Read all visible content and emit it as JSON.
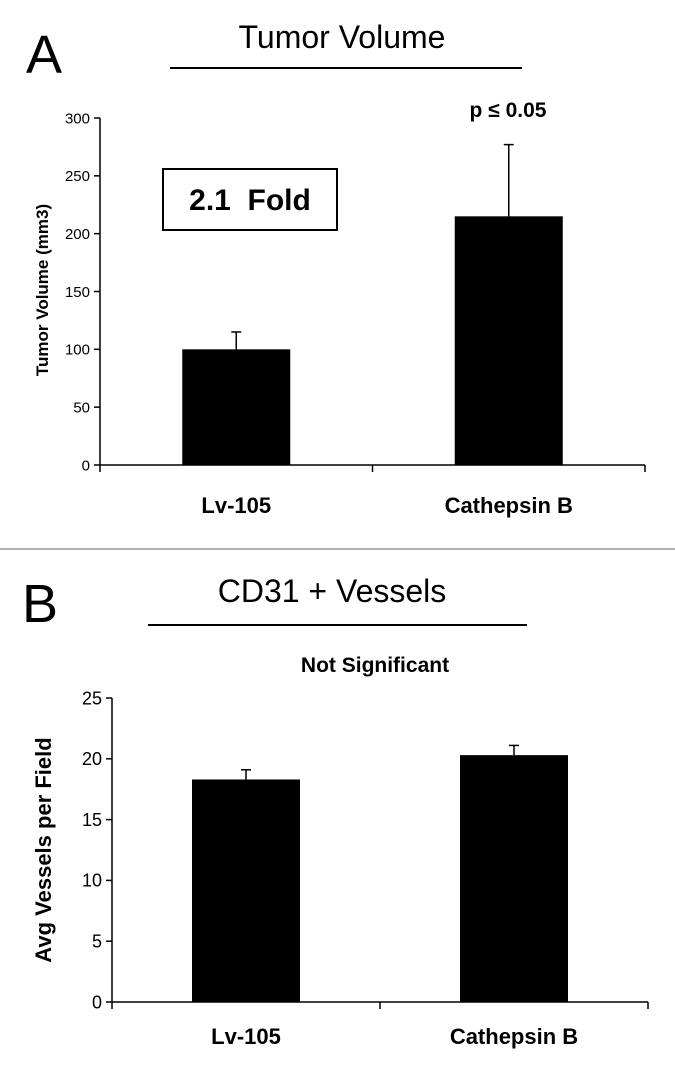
{
  "chart_data": [
    {
      "type": "bar",
      "panel_label": "A",
      "title": "Tumor Volume",
      "xlabel": "",
      "ylabel": "Tumor Volume (mm3)",
      "ylim": [
        0,
        300
      ],
      "yticks": [
        0,
        50,
        100,
        150,
        200,
        250,
        300
      ],
      "categories": [
        "Lv-105",
        "Cathepsin B"
      ],
      "values": [
        100,
        215
      ],
      "error_upper": [
        15,
        62
      ],
      "annotation": "p ≤ 0.05",
      "boxed_label": "2.1  Fold",
      "grid": false,
      "bar_color": "#000000"
    },
    {
      "type": "bar",
      "panel_label": "B",
      "title": "CD31 + Vessels",
      "xlabel": "",
      "ylabel": "Avg Vessels per Field",
      "ylim": [
        0,
        25
      ],
      "yticks": [
        0,
        5,
        10,
        15,
        20,
        25
      ],
      "categories": [
        "Lv-105",
        "Cathepsin B"
      ],
      "values": [
        18.3,
        20.3
      ],
      "error_upper": [
        0.8,
        0.8
      ],
      "annotation": "Not Significant",
      "grid": false,
      "bar_color": "#000000"
    }
  ]
}
